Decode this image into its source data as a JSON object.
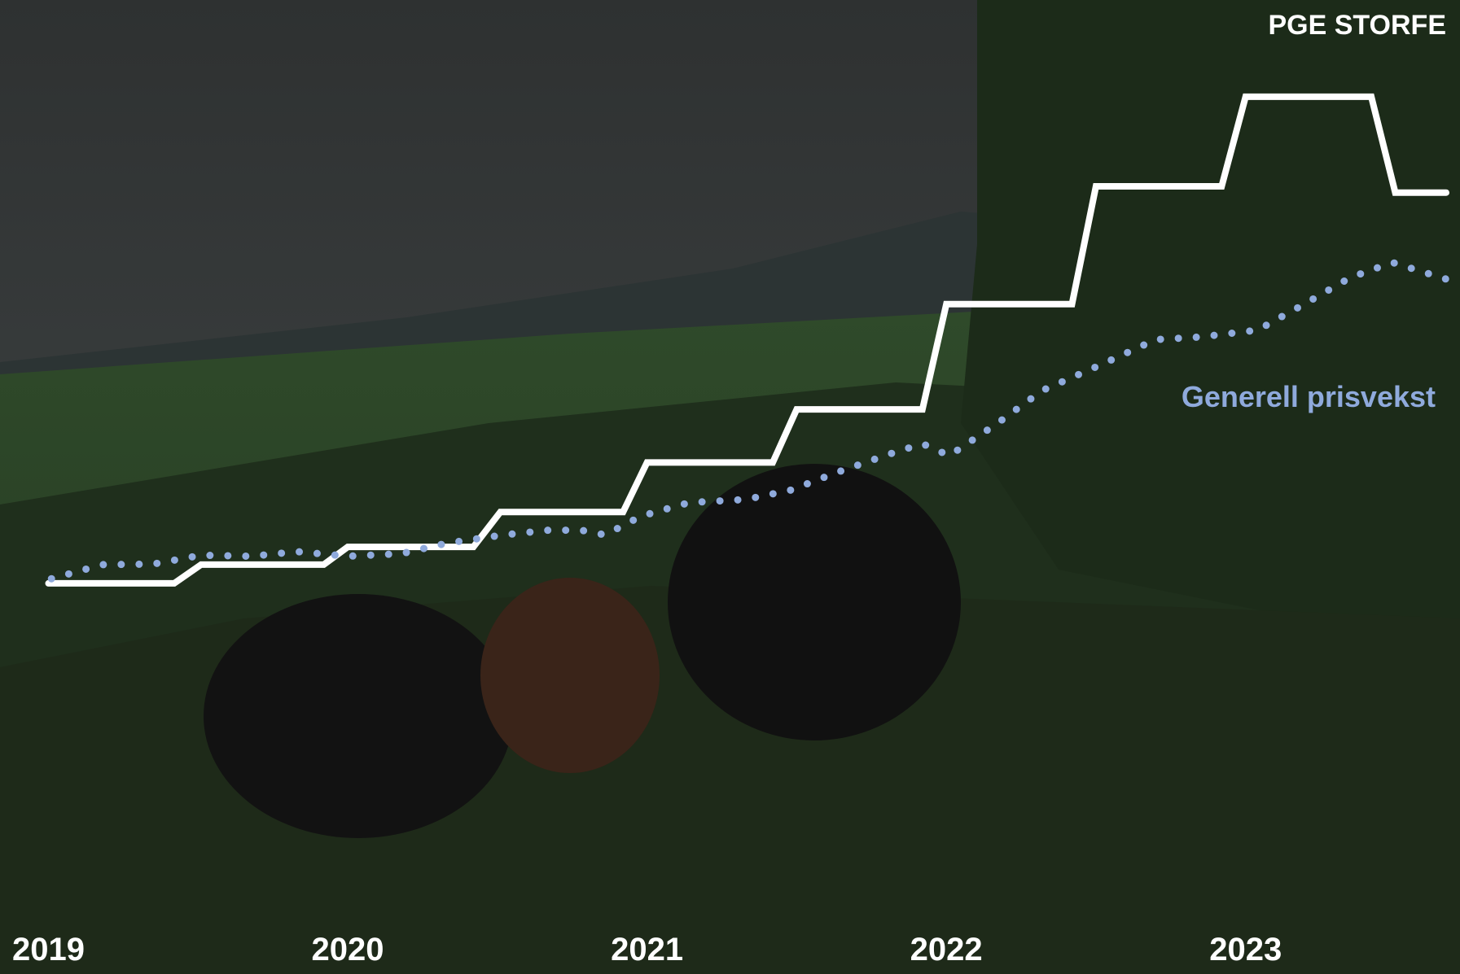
{
  "chart_data": {
    "type": "line",
    "xlim": [
      2019,
      2023.7
    ],
    "xticks": [
      2019,
      2020,
      2021,
      2022,
      2023
    ],
    "ylim": [
      0,
      100
    ],
    "series": [
      {
        "name": "PGE STORFE",
        "color": "#ffffff",
        "style": "solid",
        "x": [
          2019.0,
          2019.42,
          2019.51,
          2019.92,
          2020.0,
          2020.42,
          2020.51,
          2020.92,
          2021.0,
          2021.42,
          2021.5,
          2021.92,
          2022.0,
          2022.42,
          2022.5,
          2022.92,
          2023.0,
          2023.42,
          2023.5,
          2023.67
        ],
        "values": [
          5.9,
          5.9,
          9.5,
          9.5,
          12.9,
          12.9,
          19.6,
          19.6,
          29.1,
          29.1,
          39.3,
          39.3,
          59.5,
          59.5,
          82.1,
          82.1,
          99.3,
          99.3,
          80.9,
          80.9
        ]
      },
      {
        "name": "Generell prisvekst",
        "color": "#8faadc",
        "style": "dotted",
        "x": [
          2019.01,
          2019.18,
          2019.35,
          2019.51,
          2019.68,
          2019.83,
          2020.0,
          2020.18,
          2020.33,
          2020.52,
          2020.67,
          2020.78,
          2020.86,
          2020.98,
          2021.14,
          2021.33,
          2021.48,
          2021.64,
          2021.82,
          2021.92,
          2022.01,
          2022.17,
          2022.32,
          2022.51,
          2022.7,
          2022.85,
          2023.04,
          2023.19,
          2023.35,
          2023.49,
          2023.67
        ],
        "values": [
          6.8,
          9.5,
          9.6,
          11.3,
          11.1,
          12.0,
          11.1,
          11.6,
          13.6,
          15.2,
          16.1,
          16.1,
          15.2,
          18.8,
          21.4,
          22.0,
          23.8,
          27.3,
          30.9,
          32.7,
          30.4,
          36.6,
          42.9,
          47.7,
          52.7,
          53.2,
          54.5,
          59.3,
          64.6,
          67.5,
          64.3
        ]
      }
    ]
  }
}
